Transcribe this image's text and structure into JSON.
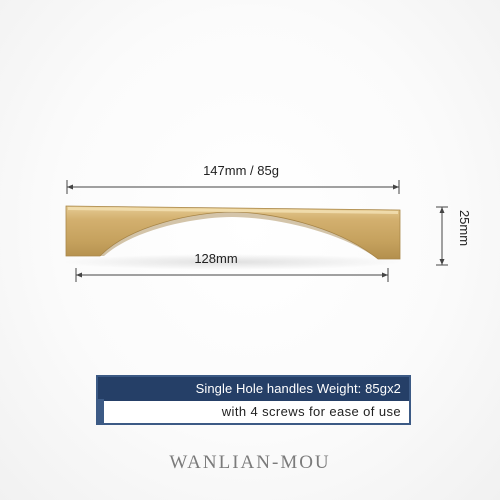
{
  "dimensions": {
    "overall": "147mm / 85g",
    "hole_spacing": "128mm",
    "height": "25mm"
  },
  "banner": {
    "line1": "Single Hole handles Weight: 85gx2",
    "line2": "with 4 screws for ease of use"
  },
  "brand": {
    "logo_text": "WANLIAN-MOU"
  },
  "colors": {
    "handle_gold": "#c8a664",
    "banner_navy": "#253f67",
    "dimension_line": "#444444"
  }
}
